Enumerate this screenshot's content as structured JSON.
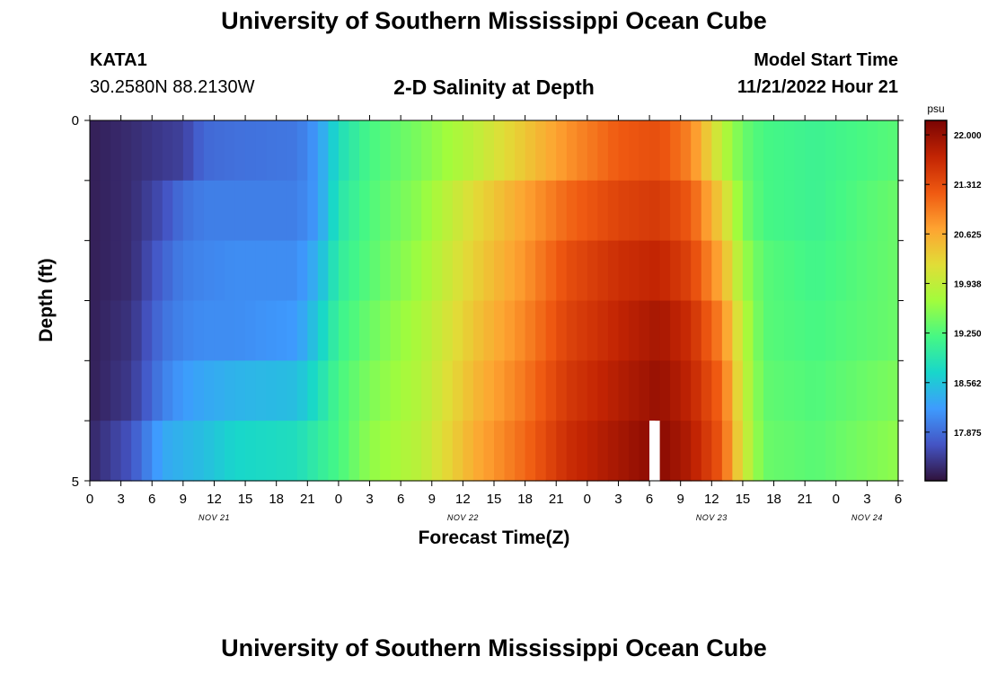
{
  "header": {
    "title": "University of Southern Mississippi Ocean Cube",
    "station_id": "KATA1",
    "station_coords": "30.2580N  88.2130W",
    "chart_title": "2-D Salinity at Depth",
    "start_label": "Model Start Time",
    "start_value": "11/21/2022 Hour 21"
  },
  "footer": {
    "title": "University of Southern Mississippi Ocean Cube"
  },
  "chart_data": {
    "type": "heatmap",
    "title": "2-D Salinity at Depth",
    "xlabel": "Forecast Time(Z)",
    "ylabel": "Depth (ft)",
    "xlim": [
      0,
      78
    ],
    "ylim": [
      0,
      5
    ],
    "y_inverted": true,
    "x_tick_labels": [
      "0",
      "3",
      "6",
      "9",
      "12",
      "15",
      "18",
      "21",
      "0",
      "3",
      "6",
      "9",
      "12",
      "15",
      "18",
      "21",
      "0",
      "3",
      "6",
      "9",
      "12",
      "15",
      "18",
      "21",
      "0",
      "3",
      "6"
    ],
    "y_tick_labels": [
      "0",
      "5"
    ],
    "day_labels": [
      {
        "text": "NOV 21",
        "hour": 12
      },
      {
        "text": "NOV 22",
        "hour": 36
      },
      {
        "text": "NOV 23",
        "hour": 60
      },
      {
        "text": "NOV 24",
        "hour": 75
      }
    ],
    "colorbar": {
      "unit": "psu",
      "min": 17.2,
      "max": 22.2,
      "ticks": [
        "22.000",
        "21.312",
        "20.625",
        "19.938",
        "19.250",
        "18.562",
        "17.875"
      ],
      "colors": [
        "#30123b",
        "#4454c4",
        "#3e9bfe",
        "#18d6cb",
        "#46f884",
        "#a2fc3c",
        "#e1dd37",
        "#fea331",
        "#ef5911",
        "#c22403",
        "#7a0403"
      ]
    },
    "depth_layers": [
      0,
      1,
      2,
      3,
      4,
      5
    ],
    "data_gap": {
      "hour": 54,
      "layer": 5
    },
    "keyframes": [
      {
        "hour": 0,
        "values": [
          17.3,
          17.3,
          17.3,
          17.3,
          17.3,
          17.35
        ]
      },
      {
        "hour": 4,
        "values": [
          17.4,
          17.4,
          17.4,
          17.45,
          17.5,
          17.7
        ]
      },
      {
        "hour": 7,
        "values": [
          17.5,
          17.65,
          17.8,
          17.9,
          18.0,
          18.3
        ]
      },
      {
        "hour": 9,
        "values": [
          17.55,
          17.9,
          18.0,
          18.05,
          18.2,
          18.4
        ]
      },
      {
        "hour": 11,
        "values": [
          17.85,
          18.0,
          18.05,
          18.1,
          18.3,
          18.5
        ]
      },
      {
        "hour": 14,
        "values": [
          17.9,
          18.0,
          18.1,
          18.1,
          18.4,
          18.7
        ]
      },
      {
        "hour": 20,
        "values": [
          17.95,
          18.0,
          18.1,
          18.2,
          18.5,
          18.8
        ]
      },
      {
        "hour": 22,
        "values": [
          18.2,
          18.2,
          18.4,
          18.6,
          18.8,
          19.0
        ]
      },
      {
        "hour": 24,
        "values": [
          18.8,
          18.9,
          19.0,
          19.1,
          19.2,
          19.2
        ]
      },
      {
        "hour": 27,
        "values": [
          19.2,
          19.25,
          19.3,
          19.4,
          19.5,
          19.6
        ]
      },
      {
        "hour": 32,
        "values": [
          19.5,
          19.6,
          19.7,
          19.8,
          19.85,
          19.9
        ]
      },
      {
        "hour": 37,
        "values": [
          19.9,
          20.2,
          20.3,
          20.4,
          20.5,
          20.6
        ]
      },
      {
        "hour": 42,
        "values": [
          20.4,
          20.7,
          20.8,
          20.9,
          21.0,
          21.1
        ]
      },
      {
        "hour": 46,
        "values": [
          20.8,
          21.1,
          21.3,
          21.4,
          21.5,
          21.6
        ]
      },
      {
        "hour": 51,
        "values": [
          21.2,
          21.4,
          21.6,
          21.7,
          21.8,
          21.9
        ]
      },
      {
        "hour": 55,
        "values": [
          21.3,
          21.5,
          21.7,
          21.9,
          22.0,
          22.1
        ]
      },
      {
        "hour": 58,
        "values": [
          20.9,
          21.2,
          21.4,
          21.6,
          21.7,
          21.8
        ]
      },
      {
        "hour": 61,
        "values": [
          19.9,
          20.3,
          20.6,
          20.9,
          21.1,
          21.2
        ]
      },
      {
        "hour": 63,
        "values": [
          19.4,
          19.5,
          19.7,
          19.9,
          20.0,
          20.1
        ]
      },
      {
        "hour": 65,
        "values": [
          19.2,
          19.2,
          19.3,
          19.3,
          19.35,
          19.4
        ]
      },
      {
        "hour": 70,
        "values": [
          19.1,
          19.1,
          19.15,
          19.2,
          19.25,
          19.3
        ]
      },
      {
        "hour": 78,
        "values": [
          19.3,
          19.4,
          19.4,
          19.4,
          19.5,
          19.6
        ]
      }
    ]
  }
}
